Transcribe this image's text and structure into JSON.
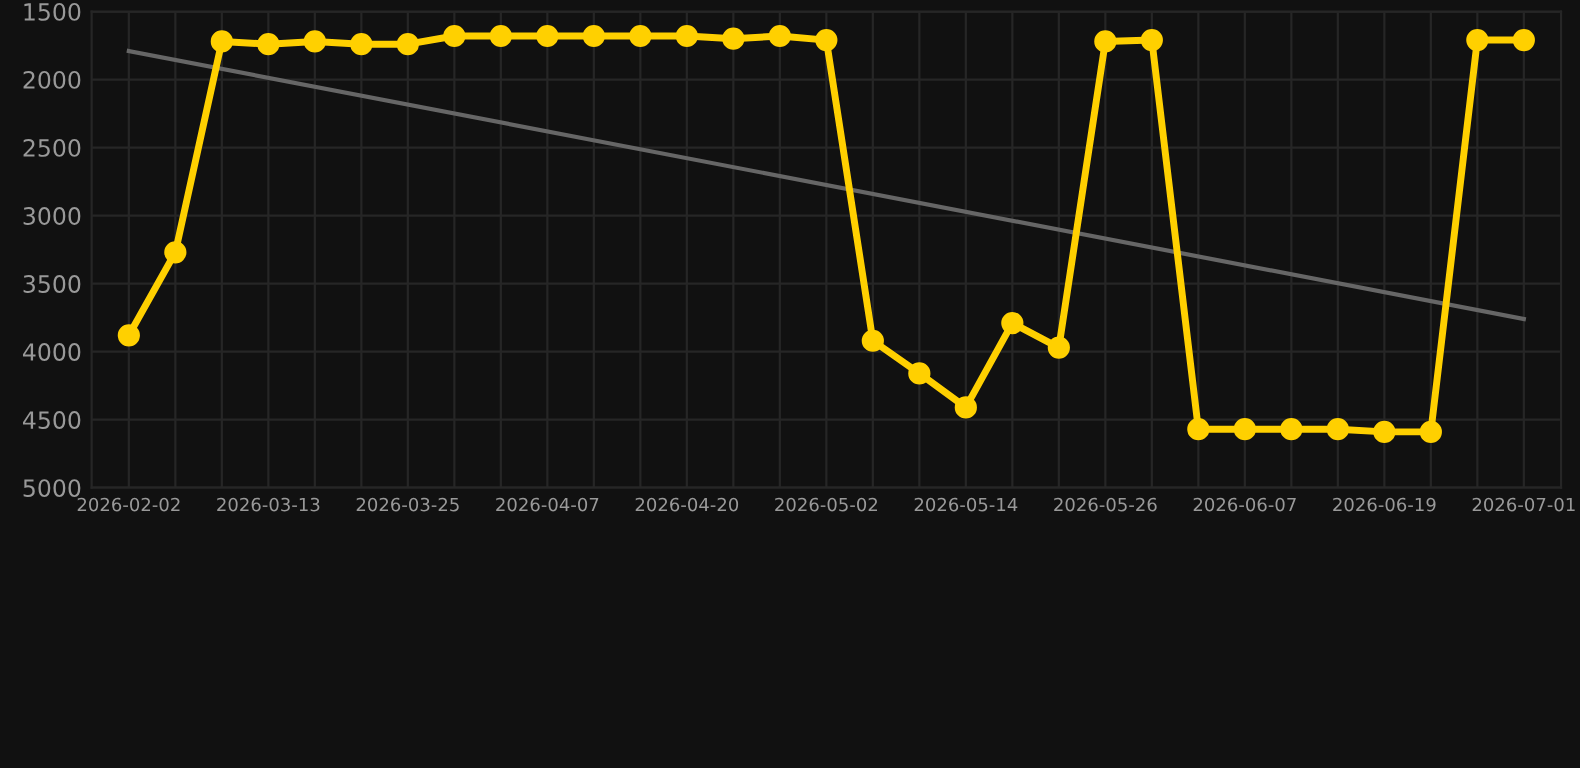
{
  "chart_data": {
    "type": "line",
    "categories": [
      "2026-02-02",
      null,
      null,
      "2026-03-13",
      null,
      null,
      "2026-03-25",
      null,
      null,
      "2026-04-07",
      null,
      null,
      "2026-04-20",
      null,
      null,
      "2026-05-02",
      null,
      null,
      "2026-05-14",
      null,
      null,
      "2026-05-26",
      null,
      null,
      "2026-06-07",
      null,
      null,
      "2026-06-19",
      null,
      null,
      "2026-07-01"
    ],
    "series": [
      {
        "color": "#ffd000",
        "marker": "circle",
        "values": [
          3880,
          3270,
          1720,
          1740,
          1720,
          1740,
          1740,
          1680,
          1680,
          1680,
          1680,
          1680,
          1680,
          1700,
          1680,
          1710,
          3920,
          4160,
          4410,
          3790,
          3970,
          1720,
          1710,
          4570,
          4570,
          4570,
          4570,
          4590,
          4590,
          1710,
          1710
        ]
      },
      {
        "type": "line",
        "color": "#666666",
        "marker": "none",
        "values": [
          1790,
          null,
          null,
          null,
          null,
          null,
          null,
          null,
          null,
          null,
          null,
          null,
          null,
          null,
          null,
          null,
          null,
          null,
          null,
          null,
          null,
          null,
          null,
          null,
          null,
          null,
          null,
          null,
          null,
          null,
          3760
        ]
      }
    ],
    "ylim": [
      5000,
      1500
    ],
    "yticks": [
      1500,
      2000,
      2500,
      3000,
      3500,
      4000,
      4500,
      5000
    ],
    "grid": true
  }
}
